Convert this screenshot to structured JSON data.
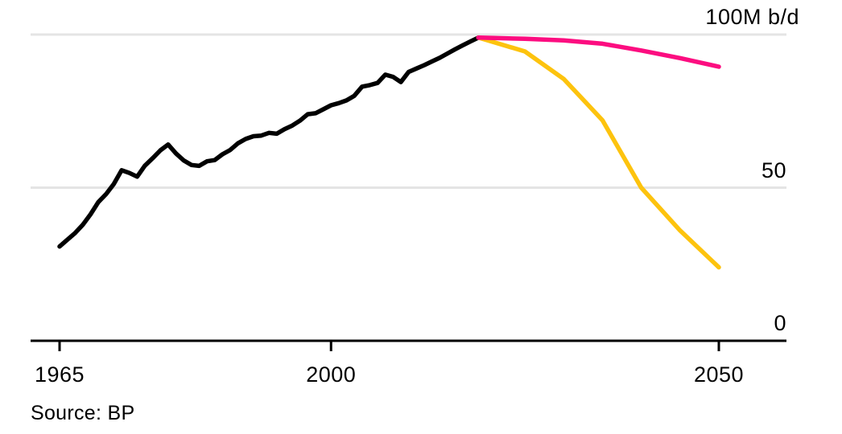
{
  "chart_data": {
    "type": "line",
    "title": "",
    "unit": "M b/d",
    "grid": "horizontal",
    "legend": "none",
    "source": "Source: BP",
    "x_axis": {
      "range": [
        1961.3,
        2058.7
      ],
      "ticks": [
        {
          "value": 1965,
          "label": "1965"
        },
        {
          "value": 2000,
          "label": "2000"
        },
        {
          "value": 2050,
          "label": "2050"
        }
      ]
    },
    "y_axis": {
      "range": [
        0,
        100
      ],
      "ticks": [
        {
          "value": 0,
          "label": "0"
        },
        {
          "value": 50,
          "label": "50"
        },
        {
          "value": 100,
          "label": "100M b/d"
        }
      ]
    },
    "series": [
      {
        "id": "history",
        "name": "black (historical)",
        "color": "#000000",
        "points": [
          [
            1965,
            30.8
          ],
          [
            1966,
            33.0
          ],
          [
            1967,
            35.2
          ],
          [
            1968,
            37.9
          ],
          [
            1969,
            41.3
          ],
          [
            1970,
            45.3
          ],
          [
            1971,
            47.9
          ],
          [
            1972,
            51.2
          ],
          [
            1973,
            55.7
          ],
          [
            1974,
            54.8
          ],
          [
            1975,
            53.6
          ],
          [
            1976,
            57.2
          ],
          [
            1977,
            59.6
          ],
          [
            1978,
            62.2
          ],
          [
            1979,
            64.1
          ],
          [
            1980,
            61.2
          ],
          [
            1981,
            58.9
          ],
          [
            1982,
            57.4
          ],
          [
            1983,
            57.1
          ],
          [
            1984,
            58.6
          ],
          [
            1985,
            59.0
          ],
          [
            1986,
            60.9
          ],
          [
            1987,
            62.3
          ],
          [
            1988,
            64.5
          ],
          [
            1989,
            65.9
          ],
          [
            1990,
            66.8
          ],
          [
            1991,
            67.0
          ],
          [
            1992,
            67.9
          ],
          [
            1993,
            67.6
          ],
          [
            1994,
            69.1
          ],
          [
            1995,
            70.3
          ],
          [
            1996,
            71.9
          ],
          [
            1997,
            74.0
          ],
          [
            1998,
            74.3
          ],
          [
            1999,
            75.6
          ],
          [
            2000,
            76.9
          ],
          [
            2001,
            77.6
          ],
          [
            2002,
            78.5
          ],
          [
            2003,
            80.0
          ],
          [
            2004,
            83.0
          ],
          [
            2005,
            83.5
          ],
          [
            2006,
            84.2
          ],
          [
            2007,
            86.9
          ],
          [
            2008,
            86.2
          ],
          [
            2009,
            84.5
          ],
          [
            2010,
            87.8
          ],
          [
            2011,
            88.9
          ],
          [
            2012,
            90.0
          ],
          [
            2013,
            91.2
          ],
          [
            2014,
            92.4
          ],
          [
            2015,
            93.8
          ],
          [
            2016,
            95.2
          ],
          [
            2017,
            96.5
          ],
          [
            2018,
            97.8
          ],
          [
            2019,
            99.0
          ]
        ]
      },
      {
        "id": "scenario-yellow",
        "name": "yellow (scenario)",
        "color": "#fdc30e",
        "points": [
          [
            2019,
            99.0
          ],
          [
            2025,
            94.5
          ],
          [
            2030,
            85.5
          ],
          [
            2035,
            72.0
          ],
          [
            2040,
            50.0
          ],
          [
            2045,
            36.0
          ],
          [
            2050,
            24.0
          ]
        ]
      },
      {
        "id": "scenario-pink",
        "name": "pink (scenario)",
        "color": "#fc0d80",
        "points": [
          [
            2019,
            99.0
          ],
          [
            2025,
            98.6
          ],
          [
            2030,
            98.1
          ],
          [
            2035,
            97.0
          ],
          [
            2040,
            94.8
          ],
          [
            2045,
            92.3
          ],
          [
            2050,
            89.5
          ]
        ]
      }
    ],
    "colors": {
      "background": "#ffffff",
      "gridline": "#e4e4e4",
      "axis": "#000000",
      "text": "#000000"
    }
  }
}
